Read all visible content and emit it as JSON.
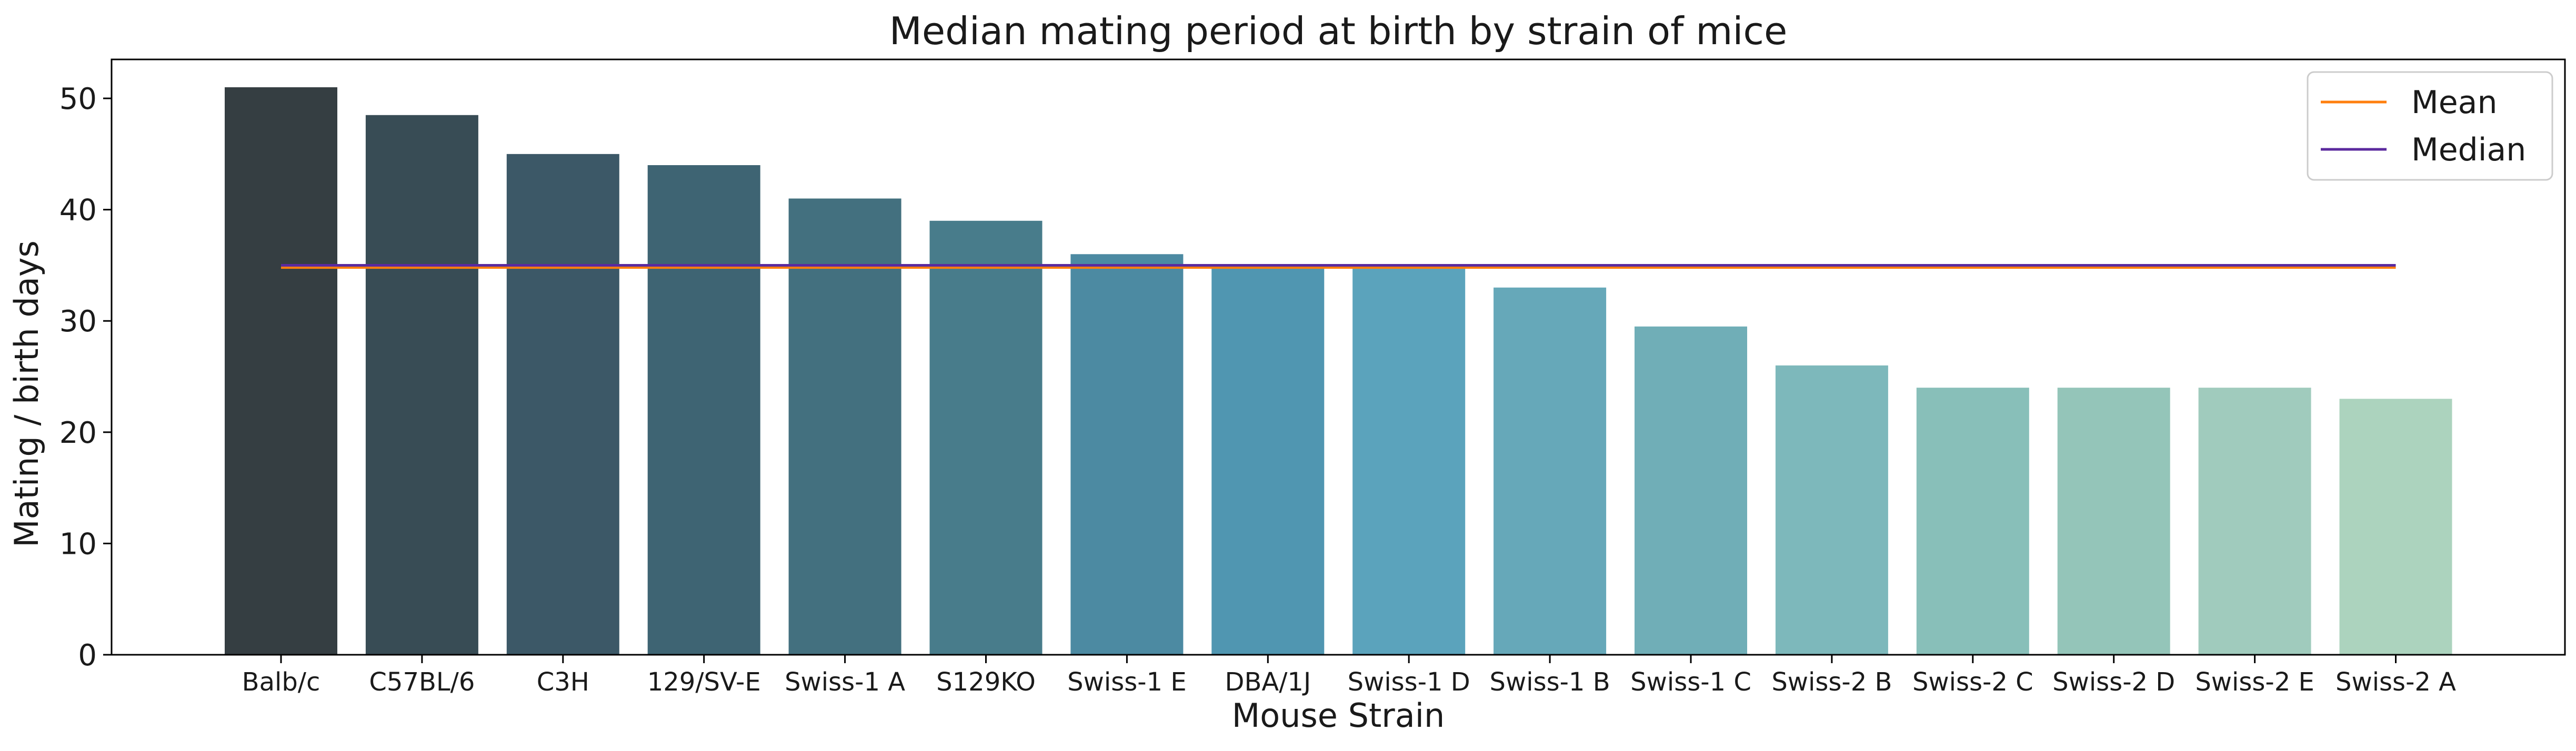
{
  "chart_data": {
    "type": "bar",
    "title": "Median mating period at birth by strain of mice",
    "xlabel": "Mouse Strain",
    "ylabel": "Mating / birth days",
    "ylim": [
      0,
      53.5
    ],
    "yticks": [
      0,
      10,
      20,
      30,
      40,
      50
    ],
    "categories": [
      "Balb/c",
      "C57BL/6",
      "C3H",
      "129/SV-E",
      "Swiss-1 A",
      "S129KO",
      "Swiss-1 E",
      "DBA/1J",
      "Swiss-1 D",
      "Swiss-1 B",
      "Swiss-1 C",
      "Swiss-2 B",
      "Swiss-2 C",
      "Swiss-2 D",
      "Swiss-2 E",
      "Swiss-2 A"
    ],
    "values": [
      51,
      48.5,
      45,
      44,
      41,
      39,
      36,
      35,
      35,
      33,
      29.5,
      26,
      24,
      24,
      24,
      23
    ],
    "bar_colors": [
      "#353e42",
      "#384c55",
      "#3c5867",
      "#3e6473",
      "#43707f",
      "#487c8b",
      "#4c8aa2",
      "#5096b1",
      "#5ba3bc",
      "#66a8b9",
      "#70aeb7",
      "#7db8bb",
      "#88bfb9",
      "#94c5b9",
      "#a0cbbd",
      "#acd3be"
    ],
    "lines": [
      {
        "name": "Mean",
        "value": 34.8,
        "color": "#ff7f0e"
      },
      {
        "name": "Median",
        "value": 35.0,
        "color": "#5b2a9e"
      }
    ],
    "legend_position": "top-right",
    "grid": false
  }
}
